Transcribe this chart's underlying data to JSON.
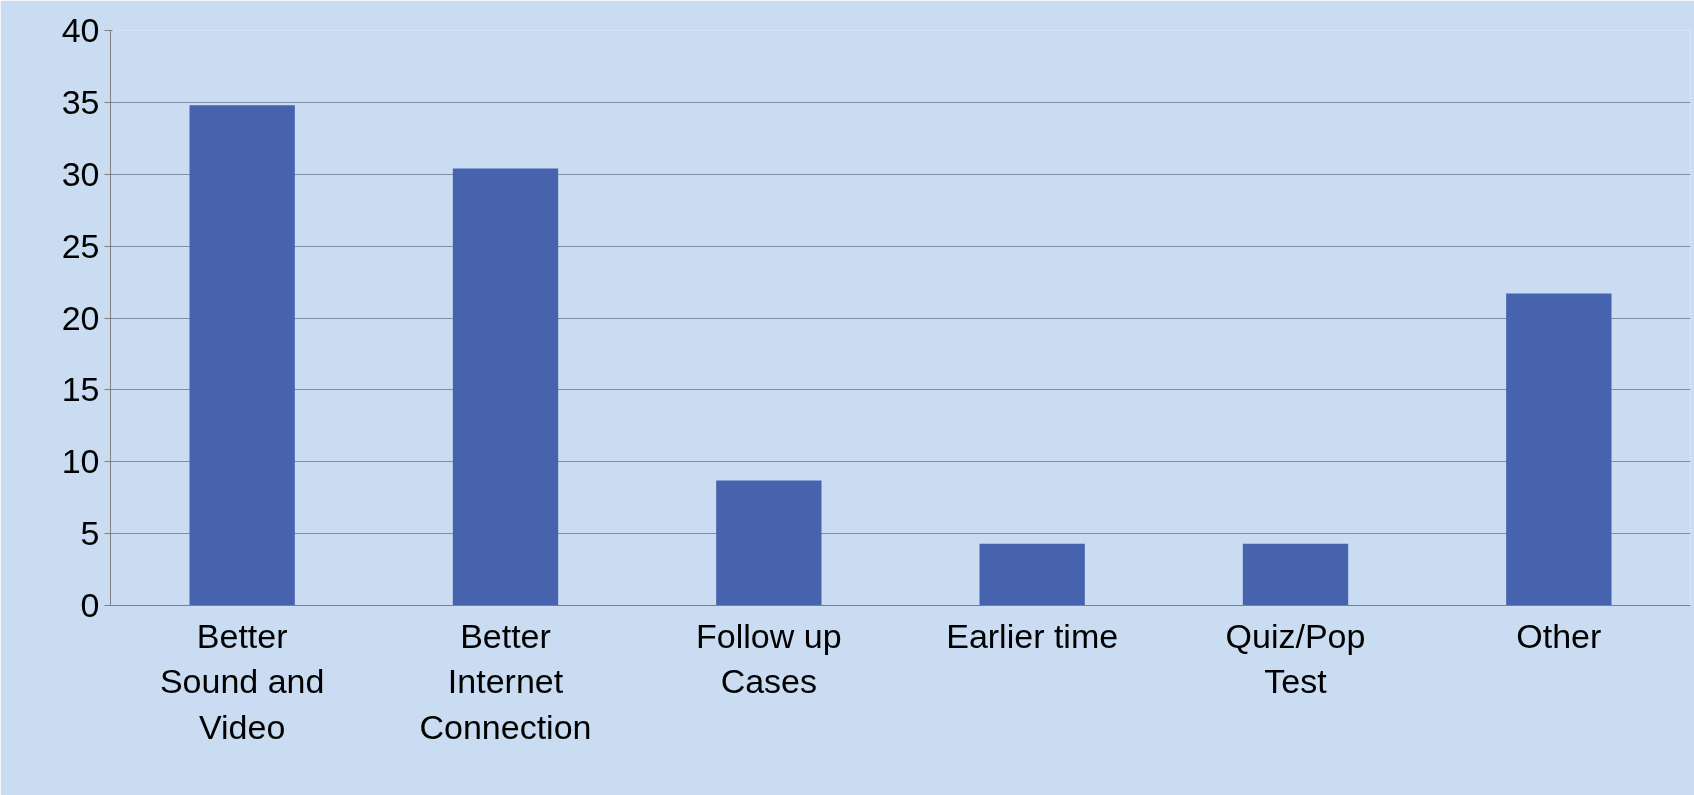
{
  "chart_data": {
    "type": "bar",
    "categories": [
      "Better\nSound and\nVideo",
      "Better\nInternet\nConnection",
      "Follow up\nCases",
      "Earlier time",
      "Quiz/Pop\nTest",
      "Other"
    ],
    "values": [
      34.8,
      30.4,
      8.7,
      4.3,
      4.3,
      21.7
    ],
    "color": "#4763ad",
    "ylim": [
      0,
      40
    ],
    "yticks": [
      0,
      5,
      10,
      15,
      20,
      25,
      30,
      35,
      40
    ],
    "grid": "y"
  }
}
